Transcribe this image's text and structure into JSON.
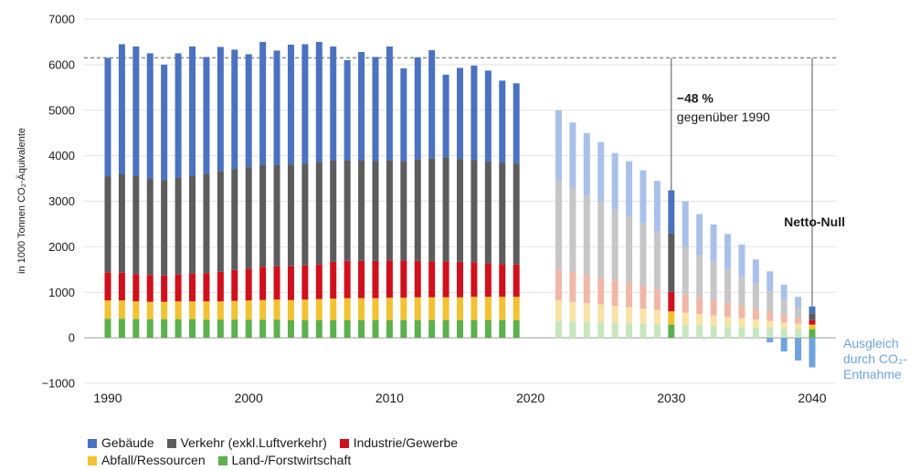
{
  "chart_data": {
    "type": "bar",
    "stacked": true,
    "ylabel": "in 1000 Tonnen CO₂-Äquivalente",
    "ylim": [
      -1000,
      7000
    ],
    "yticks": [
      -1000,
      0,
      1000,
      2000,
      3000,
      4000,
      5000,
      6000,
      7000
    ],
    "ytick_labels": [
      "−1000",
      "0",
      "1000",
      "2000",
      "3000",
      "4000",
      "5000",
      "6000",
      "7000"
    ],
    "xlim": [
      1989,
      2042
    ],
    "xticks": [
      1990,
      2000,
      2010,
      2020,
      2030,
      2040
    ],
    "grid": true,
    "legend_position": "bottom-left",
    "reference_line": {
      "value": 6150,
      "style": "dashed"
    },
    "series": [
      {
        "name": "Gebäude",
        "color": "#4a72c0",
        "faded_color": "#a9c1ea"
      },
      {
        "name": "Verkehr (exkl.Luftverkehr)",
        "color": "#5c5c5c",
        "faded_color": "#c6c6c6"
      },
      {
        "name": "Industrie/Gewerbe",
        "color": "#d0101c",
        "faded_color": "#f0b7a8"
      },
      {
        "name": "Abfall/Ressourcen",
        "color": "#f2c232",
        "faded_color": "#f8e3a6"
      },
      {
        "name": "Land-/Forstwirtschaft",
        "color": "#5cb04e",
        "faded_color": "#c7e6bd"
      }
    ],
    "segments_order": [
      "Land-/Forstwirtschaft",
      "Abfall/Ressourcen",
      "Industrie/Gewerbe",
      "Verkehr (exkl.Luftverkehr)",
      "Gebäude"
    ],
    "historical": [
      {
        "year": 1990,
        "values": [
          420,
          400,
          620,
          2110,
          2600
        ]
      },
      {
        "year": 1991,
        "values": [
          420,
          400,
          610,
          2170,
          2850
        ]
      },
      {
        "year": 1992,
        "values": [
          410,
          390,
          600,
          2150,
          2850
        ]
      },
      {
        "year": 1993,
        "values": [
          410,
          380,
          590,
          2120,
          2750
        ]
      },
      {
        "year": 1994,
        "values": [
          410,
          380,
          580,
          2090,
          2540
        ]
      },
      {
        "year": 1995,
        "values": [
          410,
          390,
          590,
          2130,
          2730
        ]
      },
      {
        "year": 1996,
        "values": [
          410,
          390,
          610,
          2140,
          2850
        ]
      },
      {
        "year": 1997,
        "values": [
          400,
          400,
          620,
          2180,
          2570
        ]
      },
      {
        "year": 1998,
        "values": [
          400,
          400,
          650,
          2210,
          2730
        ]
      },
      {
        "year": 1999,
        "values": [
          400,
          410,
          680,
          2220,
          2620
        ]
      },
      {
        "year": 2000,
        "values": [
          400,
          420,
          700,
          2230,
          2480
        ]
      },
      {
        "year": 2001,
        "values": [
          400,
          430,
          730,
          2240,
          2700
        ]
      },
      {
        "year": 2002,
        "values": [
          400,
          440,
          730,
          2230,
          2510
        ]
      },
      {
        "year": 2003,
        "values": [
          390,
          440,
          740,
          2240,
          2630
        ]
      },
      {
        "year": 2004,
        "values": [
          390,
          450,
          750,
          2240,
          2620
        ]
      },
      {
        "year": 2005,
        "values": [
          390,
          460,
          760,
          2250,
          2640
        ]
      },
      {
        "year": 2006,
        "values": [
          390,
          470,
          810,
          2230,
          2500
        ]
      },
      {
        "year": 2007,
        "values": [
          390,
          480,
          820,
          2210,
          2200
        ]
      },
      {
        "year": 2008,
        "values": [
          390,
          480,
          820,
          2210,
          2380
        ]
      },
      {
        "year": 2009,
        "values": [
          390,
          480,
          820,
          2200,
          2280
        ]
      },
      {
        "year": 2010,
        "values": [
          390,
          490,
          820,
          2200,
          2500
        ]
      },
      {
        "year": 2011,
        "values": [
          390,
          490,
          820,
          2180,
          2040
        ]
      },
      {
        "year": 2012,
        "values": [
          390,
          500,
          800,
          2230,
          2240
        ]
      },
      {
        "year": 2013,
        "values": [
          390,
          500,
          790,
          2260,
          2380
        ]
      },
      {
        "year": 2014,
        "values": [
          390,
          500,
          790,
          2290,
          1810
        ]
      },
      {
        "year": 2015,
        "values": [
          390,
          500,
          780,
          2260,
          2000
        ]
      },
      {
        "year": 2016,
        "values": [
          390,
          510,
          760,
          2250,
          2070
        ]
      },
      {
        "year": 2017,
        "values": [
          390,
          510,
          740,
          2240,
          1990
        ]
      },
      {
        "year": 2018,
        "values": [
          390,
          510,
          720,
          2230,
          1800
        ]
      },
      {
        "year": 2019,
        "values": [
          390,
          510,
          710,
          2220,
          1760
        ]
      }
    ],
    "projection": [
      {
        "year": 2022,
        "values": [
          370,
          450,
          680,
          1950,
          1550
        ]
      },
      {
        "year": 2023,
        "values": [
          360,
          430,
          650,
          1860,
          1430
        ]
      },
      {
        "year": 2024,
        "values": [
          350,
          410,
          620,
          1760,
          1360
        ]
      },
      {
        "year": 2025,
        "values": [
          340,
          390,
          590,
          1670,
          1310
        ]
      },
      {
        "year": 2026,
        "values": [
          330,
          370,
          560,
          1570,
          1230
        ]
      },
      {
        "year": 2027,
        "values": [
          320,
          350,
          530,
          1480,
          1200
        ]
      },
      {
        "year": 2028,
        "values": [
          310,
          330,
          500,
          1380,
          1160
        ]
      },
      {
        "year": 2029,
        "values": [
          300,
          310,
          460,
          1270,
          1110
        ]
      },
      {
        "year": 2030,
        "values": [
          290,
          290,
          430,
          1280,
          950
        ],
        "highlight": true
      },
      {
        "year": 2031,
        "values": [
          280,
          270,
          400,
          1050,
          1000
        ]
      },
      {
        "year": 2032,
        "values": [
          270,
          250,
          370,
          930,
          900
        ]
      },
      {
        "year": 2033,
        "values": [
          260,
          230,
          340,
          840,
          820
        ]
      },
      {
        "year": 2034,
        "values": [
          250,
          210,
          310,
          740,
          770
        ]
      },
      {
        "year": 2035,
        "values": [
          240,
          190,
          280,
          640,
          700
        ]
      },
      {
        "year": 2036,
        "values": [
          230,
          170,
          250,
          540,
          530
        ]
      },
      {
        "year": 2037,
        "values": [
          220,
          150,
          210,
          440,
          440
        ]
      },
      {
        "year": 2038,
        "values": [
          210,
          130,
          170,
          330,
          330
        ]
      },
      {
        "year": 2039,
        "values": [
          200,
          110,
          130,
          220,
          240
        ]
      },
      {
        "year": 2040,
        "values": [
          190,
          100,
          100,
          150,
          150
        ],
        "highlight": true
      }
    ],
    "removal": [
      {
        "year": 2037,
        "value": -100
      },
      {
        "year": 2038,
        "value": -300
      },
      {
        "year": 2039,
        "value": -500
      },
      {
        "year": 2040,
        "value": -650
      }
    ],
    "removal_color": "#6fa3de",
    "annotations": [
      {
        "id": "reduction-percent",
        "text": "−48 %"
      },
      {
        "id": "reduction-text",
        "text": "gegenüber 1990"
      },
      {
        "id": "netto-null",
        "text": "Netto-Null"
      },
      {
        "id": "ausgleich-1",
        "text": "Ausgleich"
      },
      {
        "id": "ausgleich-2",
        "text": "durch CO₂-"
      },
      {
        "id": "ausgleich-3",
        "text": "Entnahme"
      }
    ]
  }
}
